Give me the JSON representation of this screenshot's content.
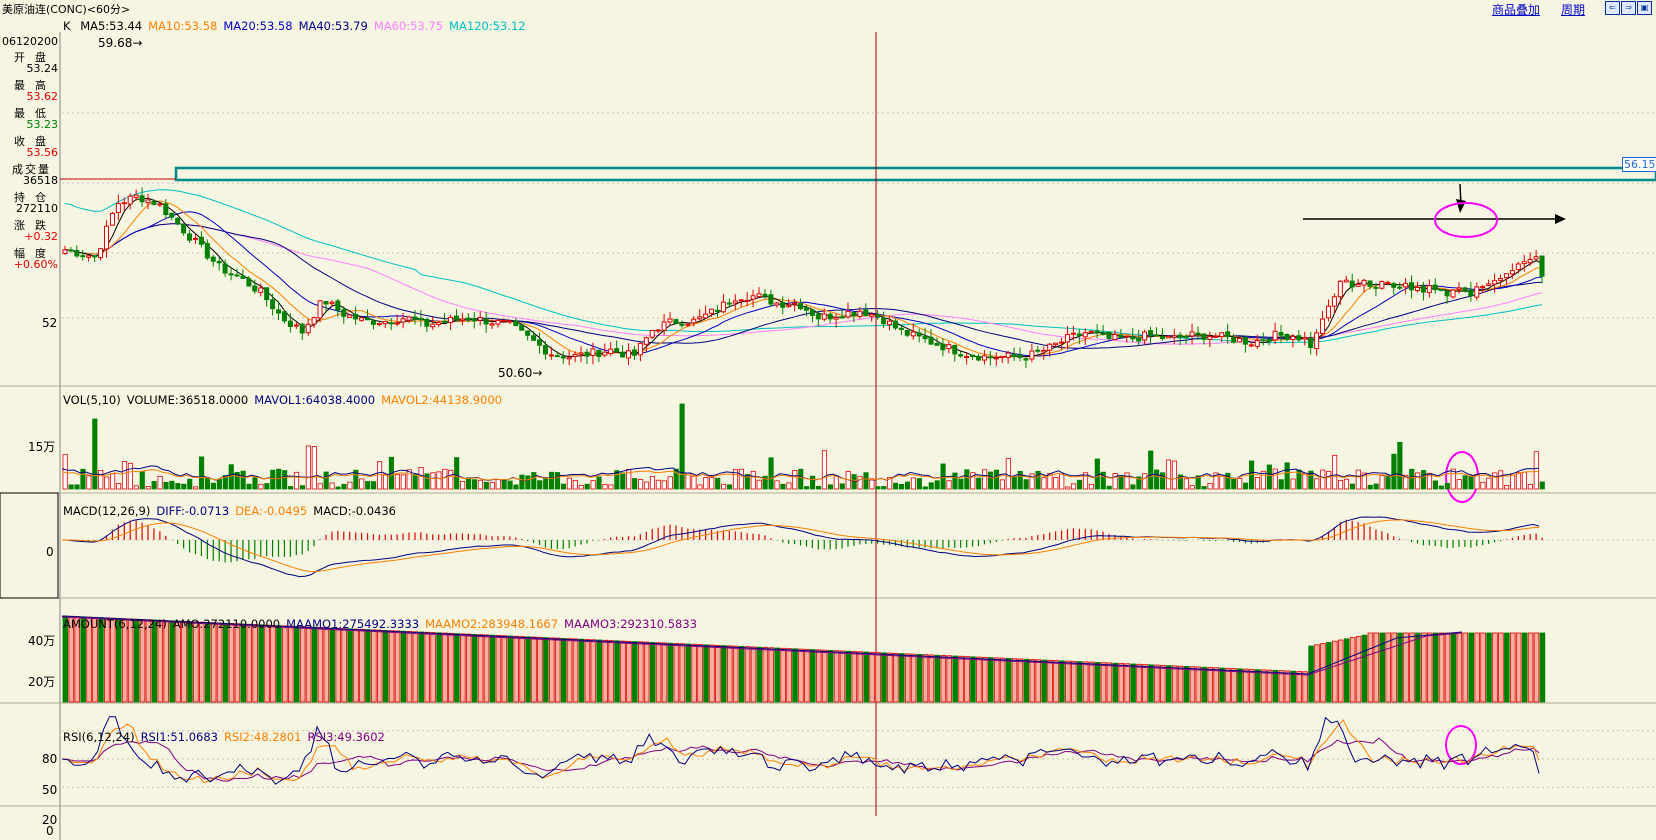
{
  "window": {
    "title": "美原油连(CONC)<60分>",
    "buttons": {
      "overlay": "商品叠加",
      "period": "周期"
    },
    "nav_icons": [
      "arrow-left-icon",
      "arrow-right-icon",
      "expand-icon"
    ]
  },
  "info": {
    "date": "06120200",
    "rows": [
      {
        "label": "开盘",
        "value": "53.24",
        "color": "#000000"
      },
      {
        "label": "最高",
        "value": "53.62",
        "color": "#e00000"
      },
      {
        "label": "最低",
        "value": "53.23",
        "color": "#008000"
      },
      {
        "label": "收盘",
        "value": "53.56",
        "color": "#e00000"
      },
      {
        "label": "成交量",
        "value": "36518",
        "color": "#000000"
      },
      {
        "label": "持仓",
        "value": "272110",
        "color": "#000000"
      },
      {
        "label": "涨跌",
        "value": "+0.32",
        "color": "#e00000"
      },
      {
        "label": "幅度",
        "value": "+0.60%",
        "color": "#e00000"
      }
    ]
  },
  "kline": {
    "prefix": "K",
    "ma": [
      {
        "label": "MA5:53.44",
        "color": "#000000"
      },
      {
        "label": "MA10:53.58",
        "color": "#ff7f00"
      },
      {
        "label": "MA20:53.58",
        "color": "#0000c0"
      },
      {
        "label": "MA40:53.79",
        "color": "#000080"
      },
      {
        "label": "MA60:53.75",
        "color": "#ff80ff"
      },
      {
        "label": "MA120:53.12",
        "color": "#00c0c0"
      }
    ],
    "high_label": "59.68",
    "low_label": "50.60",
    "axis_label": "52",
    "price_tag": "56.15"
  },
  "volume": {
    "legend": [
      {
        "label": "VOL(5,10)",
        "color": "#000000"
      },
      {
        "label": "VOLUME:36518.0000",
        "color": "#000000"
      },
      {
        "label": "MAVOL1:64038.4000",
        "color": "#000080"
      },
      {
        "label": "MAVOL2:44138.9000",
        "color": "#ff7f00"
      }
    ],
    "axis_label": "15万"
  },
  "macd": {
    "legend": [
      {
        "label": "MACD(12,26,9)",
        "color": "#000000"
      },
      {
        "label": "DIFF:-0.0713",
        "color": "#000080"
      },
      {
        "label": "DEA:-0.0495",
        "color": "#ff7f00"
      },
      {
        "label": "MACD:-0.0436",
        "color": "#000000"
      }
    ],
    "axis_label": "0"
  },
  "amount": {
    "legend": [
      {
        "label": "AMOUNT(6,12,24)",
        "color": "#000000"
      },
      {
        "label": "AMO:272110.0000",
        "color": "#000000"
      },
      {
        "label": "MAAMO1:275492.3333",
        "color": "#000080"
      },
      {
        "label": "MAAMO2:283948.1667",
        "color": "#ff7f00"
      },
      {
        "label": "MAAMO3:292310.5833",
        "color": "#800080"
      }
    ],
    "axis_labels": [
      "40万",
      "20万"
    ]
  },
  "rsi": {
    "legend": [
      {
        "label": "RSI(6,12,24)",
        "color": "#000000"
      },
      {
        "label": "RSI1:51.0683",
        "color": "#000080"
      },
      {
        "label": "RSI2:48.2801",
        "color": "#ff7f00"
      },
      {
        "label": "RSI3:49.3602",
        "color": "#800080"
      }
    ],
    "axis_labels": [
      "80",
      "50",
      "20",
      "0"
    ]
  },
  "colors": {
    "up": "#e00000",
    "down": "#008000",
    "bg": "#f5f5e1",
    "annotation_box": "#008b8b",
    "circle": "#ff00ff",
    "crosshair": "#a00000"
  }
}
